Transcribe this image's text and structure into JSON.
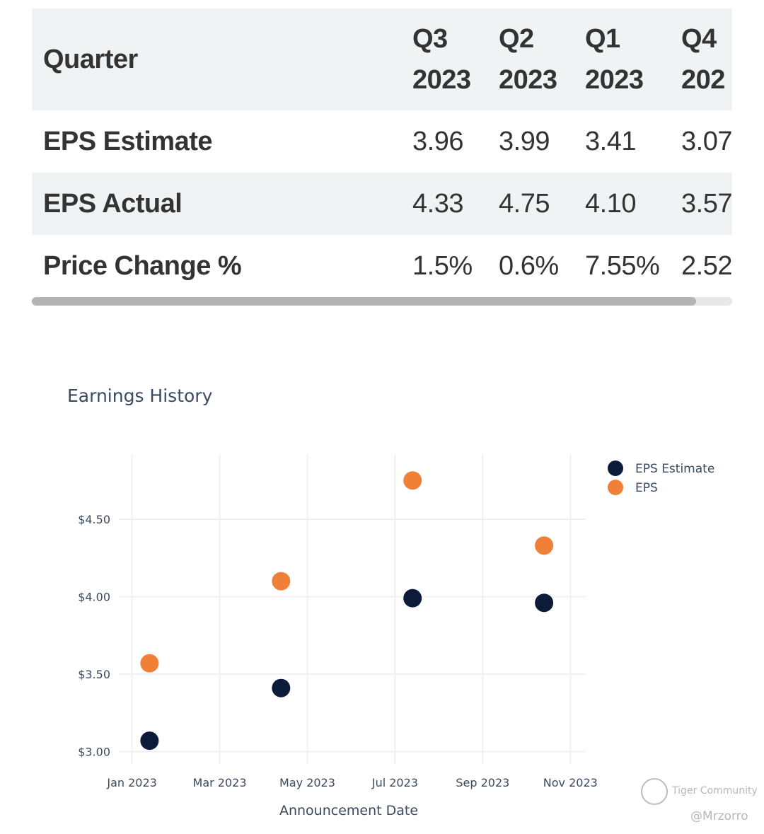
{
  "table": {
    "header_label": "Quarter",
    "columns": [
      {
        "q": "Q3",
        "year": "2023"
      },
      {
        "q": "Q2",
        "year": "2023"
      },
      {
        "q": "Q1",
        "year": "2023"
      },
      {
        "q": "Q4",
        "year": "202"
      }
    ],
    "rows": [
      {
        "label": "EPS Estimate",
        "values": [
          "3.96",
          "3.99",
          "3.41",
          "3.07"
        ]
      },
      {
        "label": "EPS Actual",
        "values": [
          "4.33",
          "4.75",
          "4.10",
          "3.57"
        ]
      },
      {
        "label": "Price Change %",
        "values": [
          "1.5%",
          "0.6%",
          "7.55%",
          "2.52"
        ]
      }
    ]
  },
  "chart_data": {
    "type": "scatter",
    "title": "Earnings History",
    "xlabel": "Announcement Date",
    "ylabel": "",
    "x_ticks": [
      "Jan 2023",
      "Mar 2023",
      "May 2023",
      "Jul 2023",
      "Sep 2023",
      "Nov 2023"
    ],
    "y_ticks": [
      "$3.00",
      "$3.50",
      "$4.00",
      "$4.50"
    ],
    "xlim_months": [
      -0.3,
      10.35
    ],
    "ylim": [
      2.92,
      4.92
    ],
    "x_tick_months": [
      0,
      2,
      4,
      6,
      8,
      10
    ],
    "y_tick_values": [
      3.0,
      3.5,
      4.0,
      4.5
    ],
    "legend_position": "top-right",
    "series": [
      {
        "name": "EPS Estimate",
        "color": "#0d1b3a",
        "x_months": [
          0.4,
          3.4,
          6.4,
          9.4
        ],
        "values": [
          3.07,
          3.41,
          3.99,
          3.96
        ]
      },
      {
        "name": "EPS",
        "color": "#f07f38",
        "x_months": [
          0.4,
          3.4,
          6.4,
          9.4
        ],
        "values": [
          3.57,
          4.1,
          4.75,
          4.33
        ]
      }
    ]
  },
  "watermark": {
    "brand": "Tiger Community",
    "user": "@Mrzorro"
  }
}
